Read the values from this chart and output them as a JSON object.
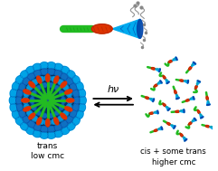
{
  "background_color": "#ffffff",
  "label_trans": "trans\nlow cmc",
  "label_cis": "cis + some trans\nhigher cmc",
  "label_arrow": "hν",
  "fig_width": 2.41,
  "fig_height": 1.89,
  "dpi": 100,
  "colors": {
    "green": "#22bb22",
    "green_dark": "#119911",
    "red_orange": "#dd3300",
    "red_dark": "#aa2200",
    "blue_bright": "#00aaee",
    "blue_mid": "#1177cc",
    "blue_dark": "#0044aa",
    "blue_deep": "#002288",
    "teal": "#009999",
    "gray": "#888888"
  }
}
